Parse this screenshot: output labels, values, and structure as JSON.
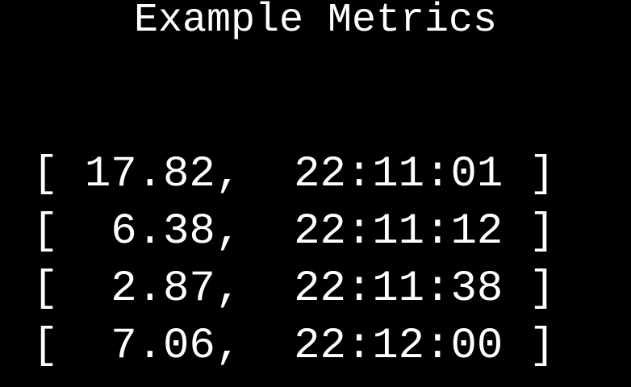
{
  "title": "Example Metrics",
  "rows": [
    {
      "value": "17.82",
      "time": "22:11:01"
    },
    {
      "value": "6.38",
      "time": "22:11:12"
    },
    {
      "value": "2.87",
      "time": "22:11:38"
    },
    {
      "value": "7.06",
      "time": "22:12:00"
    }
  ]
}
